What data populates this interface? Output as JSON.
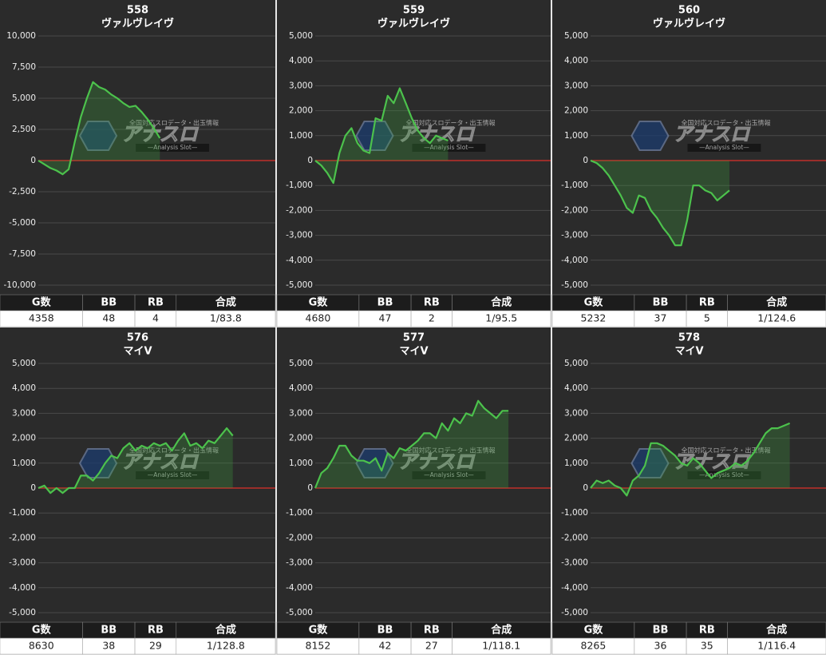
{
  "chart_data": [
    {
      "type": "line",
      "title": "558",
      "subtitle": "ヴァルヴレイヴ",
      "color": "#4cc24c",
      "zero_color": "#c0302b",
      "grid": true,
      "ylim": [
        -10000,
        10000
      ],
      "yticks": [
        {
          "value": -10000,
          "label": "-10,000"
        },
        {
          "value": -7500,
          "label": "-7,500"
        },
        {
          "value": -5000,
          "label": "-5,000"
        },
        {
          "value": -2500,
          "label": "-2,500"
        },
        0,
        {
          "value": 2500,
          "label": "2,500"
        },
        {
          "value": 5000,
          "label": "5,000"
        },
        {
          "value": 7500,
          "label": "7,500"
        },
        {
          "value": 10000,
          "label": "10,000"
        }
      ],
      "values": [
        0,
        -300,
        -600,
        -800,
        -1100,
        -700,
        1500,
        3500,
        5000,
        6300,
        5900,
        5700,
        5300,
        5000,
        4600,
        4300,
        4400,
        3900,
        3300,
        2600,
        1800,
        null,
        null,
        null,
        null,
        null,
        null,
        null,
        null,
        null,
        null,
        null,
        null,
        null,
        null,
        null,
        null,
        null,
        null,
        null
      ]
    },
    {
      "type": "line",
      "title": "559",
      "subtitle": "ヴァルヴレイヴ",
      "color": "#4cc24c",
      "zero_color": "#c0302b",
      "grid": true,
      "ylim": [
        -5000,
        5000
      ],
      "yticks": [
        {
          "value": -5000,
          "label": "-5,000"
        },
        {
          "value": -4000,
          "label": "-4,000"
        },
        {
          "value": -3000,
          "label": "-3,000"
        },
        {
          "value": -2000,
          "label": "-2,000"
        },
        {
          "value": -1000,
          "label": "-1,000"
        },
        0,
        {
          "value": 1000,
          "label": "1,000"
        },
        {
          "value": 2000,
          "label": "2,000"
        },
        {
          "value": 3000,
          "label": "3,000"
        },
        {
          "value": 4000,
          "label": "4,000"
        },
        {
          "value": 5000,
          "label": "5,000"
        }
      ],
      "values": [
        0,
        -200,
        -500,
        -900,
        300,
        1000,
        1300,
        700,
        400,
        300,
        1700,
        1600,
        2600,
        2300,
        2900,
        2300,
        1700,
        1200,
        900,
        700,
        1000,
        900,
        800,
        null,
        null,
        null,
        null,
        null,
        null,
        null,
        null,
        null,
        null,
        null,
        null,
        null,
        null,
        null,
        null,
        null
      ]
    },
    {
      "type": "line",
      "title": "560",
      "subtitle": "ヴァルヴレイヴ",
      "color": "#4cc24c",
      "zero_color": "#c0302b",
      "grid": true,
      "ylim": [
        -5000,
        5000
      ],
      "yticks": [
        {
          "value": -5000,
          "label": "-5,000"
        },
        {
          "value": -4000,
          "label": "-4,000"
        },
        {
          "value": -3000,
          "label": "-3,000"
        },
        {
          "value": -2000,
          "label": "-2,000"
        },
        {
          "value": -1000,
          "label": "-1,000"
        },
        0,
        {
          "value": 1000,
          "label": "1,000"
        },
        {
          "value": 2000,
          "label": "2,000"
        },
        {
          "value": 3000,
          "label": "3,000"
        },
        {
          "value": 4000,
          "label": "4,000"
        },
        {
          "value": 5000,
          "label": "5,000"
        }
      ],
      "values": [
        0,
        -100,
        -300,
        -600,
        -1000,
        -1400,
        -1900,
        -2100,
        -1400,
        -1500,
        -2000,
        -2300,
        -2700,
        -3000,
        -3400,
        -3400,
        -2400,
        -1000,
        -1000,
        -1200,
        -1300,
        -1600,
        -1400,
        -1200,
        null,
        null,
        null,
        null,
        null,
        null,
        null,
        null,
        null,
        null,
        null,
        null,
        null,
        null,
        null,
        null
      ]
    },
    {
      "type": "line",
      "title": "576",
      "subtitle": "マイV",
      "color": "#4cc24c",
      "zero_color": "#c0302b",
      "grid": true,
      "ylim": [
        -5000,
        5000
      ],
      "yticks": [
        {
          "value": -5000,
          "label": "-5,000"
        },
        {
          "value": -4000,
          "label": "-4,000"
        },
        {
          "value": -3000,
          "label": "-3,000"
        },
        {
          "value": -2000,
          "label": "-2,000"
        },
        {
          "value": -1000,
          "label": "-1,000"
        },
        0,
        {
          "value": 1000,
          "label": "1,000"
        },
        {
          "value": 2000,
          "label": "2,000"
        },
        {
          "value": 3000,
          "label": "3,000"
        },
        {
          "value": 4000,
          "label": "4,000"
        },
        {
          "value": 5000,
          "label": "5,000"
        }
      ],
      "values": [
        0,
        100,
        -200,
        0,
        -200,
        0,
        0,
        500,
        500,
        300,
        600,
        1000,
        1300,
        1200,
        1600,
        1800,
        1500,
        1700,
        1600,
        1800,
        1700,
        1800,
        1500,
        1900,
        2200,
        1700,
        1800,
        1600,
        1900,
        1800,
        2100,
        2400,
        2100,
        null,
        null,
        null,
        null,
        null,
        null,
        null
      ]
    },
    {
      "type": "line",
      "title": "577",
      "subtitle": "マイV",
      "color": "#4cc24c",
      "zero_color": "#c0302b",
      "grid": true,
      "ylim": [
        -5000,
        5000
      ],
      "yticks": [
        {
          "value": -5000,
          "label": "-5,000"
        },
        {
          "value": -4000,
          "label": "-4,000"
        },
        {
          "value": -3000,
          "label": "-3,000"
        },
        {
          "value": -2000,
          "label": "-2,000"
        },
        {
          "value": -1000,
          "label": "-1,000"
        },
        0,
        {
          "value": 1000,
          "label": "1,000"
        },
        {
          "value": 2000,
          "label": "2,000"
        },
        {
          "value": 3000,
          "label": "3,000"
        },
        {
          "value": 4000,
          "label": "4,000"
        },
        {
          "value": 5000,
          "label": "5,000"
        }
      ],
      "values": [
        0,
        600,
        800,
        1200,
        1700,
        1700,
        1300,
        1100,
        1100,
        1000,
        1200,
        700,
        1400,
        1200,
        1600,
        1500,
        1700,
        1900,
        2200,
        2200,
        2000,
        2600,
        2300,
        2800,
        2600,
        3000,
        2900,
        3500,
        3200,
        3000,
        2800,
        3100,
        3100,
        null,
        null,
        null,
        null,
        null,
        null,
        null
      ]
    },
    {
      "type": "line",
      "title": "578",
      "subtitle": "マイV",
      "color": "#4cc24c",
      "zero_color": "#c0302b",
      "grid": true,
      "ylim": [
        -5000,
        5000
      ],
      "yticks": [
        {
          "value": -5000,
          "label": "-5,000"
        },
        {
          "value": -4000,
          "label": "-4,000"
        },
        {
          "value": -3000,
          "label": "-3,000"
        },
        {
          "value": -2000,
          "label": "-2,000"
        },
        {
          "value": -1000,
          "label": "-1,000"
        },
        0,
        {
          "value": 1000,
          "label": "1,000"
        },
        {
          "value": 2000,
          "label": "2,000"
        },
        {
          "value": 3000,
          "label": "3,000"
        },
        {
          "value": 4000,
          "label": "4,000"
        },
        {
          "value": 5000,
          "label": "5,000"
        }
      ],
      "values": [
        0,
        300,
        200,
        300,
        100,
        0,
        -300,
        300,
        500,
        900,
        1800,
        1800,
        1700,
        1500,
        1300,
        1000,
        900,
        1200,
        1000,
        700,
        400,
        600,
        700,
        800,
        1000,
        900,
        1100,
        1400,
        1800,
        2200,
        2400,
        2400,
        2500,
        2600,
        null,
        null,
        null,
        null,
        null,
        null
      ]
    }
  ],
  "table_header": [
    "G数",
    "BB",
    "RB",
    "合成"
  ],
  "tables": [
    [
      4358,
      48,
      4,
      "1/83.8"
    ],
    [
      4680,
      47,
      2,
      "1/95.5"
    ],
    [
      5232,
      37,
      5,
      "1/124.6"
    ],
    [
      8630,
      38,
      29,
      "1/128.8"
    ],
    [
      8152,
      42,
      27,
      "1/118.1"
    ],
    [
      8265,
      36,
      35,
      "1/116.4"
    ]
  ],
  "watermark": {
    "caption": "全国対応スロデータ・出玉情報",
    "logo": "アナスロ",
    "tagline": "—Analysis Slot—"
  }
}
